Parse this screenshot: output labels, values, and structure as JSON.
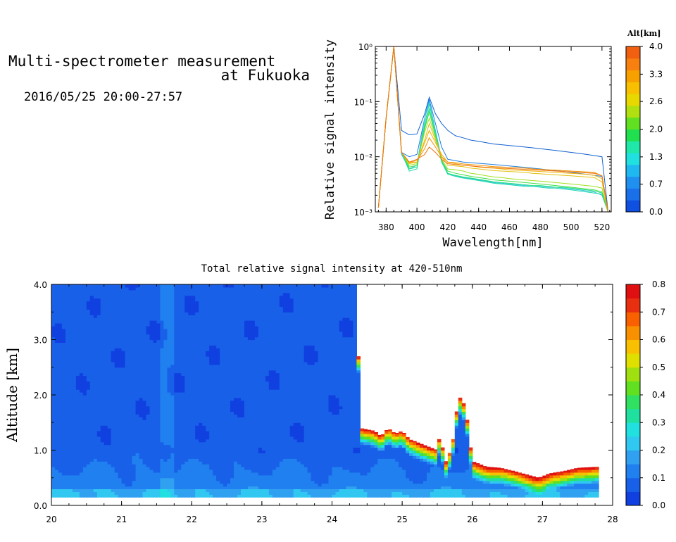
{
  "header": {
    "title_line1": "Multi-spectrometer measurement",
    "title_line2": "at Fukuoka",
    "date_range": "2016/05/25 20:00-27:57"
  },
  "chart_data": [
    {
      "type": "line",
      "xlabel": "Wavelength[nm]",
      "ylabel": "Relative signal intensity",
      "xlim": [
        373,
        526
      ],
      "ylim": [
        0.001,
        1
      ],
      "yscale": "log",
      "x_ticks": [
        "380",
        "400",
        "420",
        "440",
        "460",
        "480",
        "500",
        "520"
      ],
      "x_tick_values": [
        380,
        400,
        420,
        440,
        460,
        480,
        500,
        520
      ],
      "y_ticks": [
        "10⁻³",
        "10⁻²",
        "10⁻¹",
        "10⁰"
      ],
      "y_tick_values": [
        0.001,
        0.01,
        0.1,
        1
      ],
      "x": [
        375,
        380,
        385,
        390,
        395,
        400,
        405,
        408,
        412,
        416,
        420,
        425,
        430,
        435,
        440,
        445,
        450,
        455,
        460,
        465,
        470,
        475,
        480,
        485,
        490,
        495,
        500,
        505,
        510,
        515,
        520,
        524
      ],
      "series": [
        {
          "alt": 0.0,
          "color": "#1060d0",
          "values": [
            0.0012,
            0.05,
            1.0,
            0.03,
            0.025,
            0.026,
            0.06,
            0.12,
            0.06,
            0.04,
            0.03,
            0.024,
            0.022,
            0.02,
            0.019,
            0.018,
            0.017,
            0.0165,
            0.016,
            0.0155,
            0.015,
            0.0145,
            0.014,
            0.0135,
            0.013,
            0.0125,
            0.012,
            0.0115,
            0.011,
            0.0105,
            0.01,
            0.001
          ]
        },
        {
          "alt": 0.3,
          "color": "#2080e0",
          "values": [
            0.0012,
            0.05,
            1.0,
            0.012,
            0.01,
            0.011,
            0.05,
            0.11,
            0.04,
            0.015,
            0.009,
            0.0085,
            0.008,
            0.0078,
            0.0076,
            0.0074,
            0.0072,
            0.007,
            0.0068,
            0.0066,
            0.0064,
            0.0062,
            0.006,
            0.0058,
            0.0056,
            0.0054,
            0.0052,
            0.005,
            0.0048,
            0.0046,
            0.0044,
            0.001
          ]
        },
        {
          "alt": 1.0,
          "color": "#30c0e0",
          "values": [
            0.0012,
            0.05,
            1.0,
            0.011,
            0.006,
            0.007,
            0.05,
            0.1,
            0.03,
            0.009,
            0.005,
            0.0045,
            0.0042,
            0.004,
            0.0038,
            0.0036,
            0.0034,
            0.0033,
            0.0032,
            0.0031,
            0.003,
            0.0029,
            0.0029,
            0.0028,
            0.0028,
            0.0027,
            0.0026,
            0.0025,
            0.0024,
            0.0023,
            0.002,
            0.001
          ]
        },
        {
          "alt": 1.3,
          "color": "#20d8b0",
          "values": [
            0.0012,
            0.05,
            1.0,
            0.012,
            0.0055,
            0.006,
            0.04,
            0.09,
            0.028,
            0.008,
            0.0048,
            0.0044,
            0.0041,
            0.0039,
            0.0037,
            0.0035,
            0.0033,
            0.0032,
            0.0031,
            0.003,
            0.0029,
            0.0029,
            0.0028,
            0.0027,
            0.0027,
            0.0026,
            0.0025,
            0.0024,
            0.0023,
            0.0022,
            0.0021,
            0.001
          ]
        },
        {
          "alt": 1.7,
          "color": "#20e080",
          "values": [
            0.0012,
            0.05,
            1.0,
            0.012,
            0.006,
            0.0065,
            0.035,
            0.075,
            0.025,
            0.008,
            0.005,
            0.0046,
            0.0043,
            0.0041,
            0.0039,
            0.0037,
            0.0035,
            0.0034,
            0.0033,
            0.0032,
            0.0031,
            0.003,
            0.003,
            0.0029,
            0.0028,
            0.0028,
            0.0027,
            0.0026,
            0.0025,
            0.0024,
            0.0022,
            0.001
          ]
        },
        {
          "alt": 2.0,
          "color": "#40e040",
          "values": [
            0.0012,
            0.05,
            1.0,
            0.012,
            0.0065,
            0.007,
            0.032,
            0.065,
            0.024,
            0.0085,
            0.0055,
            0.005,
            0.0047,
            0.0044,
            0.0042,
            0.004,
            0.0038,
            0.0037,
            0.0036,
            0.0035,
            0.0034,
            0.0033,
            0.0032,
            0.0031,
            0.003,
            0.0029,
            0.0028,
            0.0027,
            0.0026,
            0.0025,
            0.0023,
            0.001
          ]
        },
        {
          "alt": 2.6,
          "color": "#a0e020",
          "values": [
            0.0012,
            0.05,
            1.0,
            0.012,
            0.007,
            0.0075,
            0.028,
            0.05,
            0.022,
            0.009,
            0.006,
            0.0058,
            0.0055,
            0.005,
            0.0048,
            0.0045,
            0.0043,
            0.0042,
            0.004,
            0.0039,
            0.0038,
            0.0037,
            0.0036,
            0.0035,
            0.0034,
            0.0033,
            0.0032,
            0.0031,
            0.003,
            0.0029,
            0.0027,
            0.001
          ]
        },
        {
          "alt": 3.0,
          "color": "#e0c010",
          "values": [
            0.0012,
            0.05,
            1.0,
            0.012,
            0.0075,
            0.008,
            0.02,
            0.04,
            0.02,
            0.01,
            0.007,
            0.0068,
            0.0066,
            0.0062,
            0.006,
            0.0058,
            0.0056,
            0.0055,
            0.0054,
            0.0053,
            0.0052,
            0.005,
            0.0049,
            0.0048,
            0.0047,
            0.0046,
            0.0045,
            0.0044,
            0.0043,
            0.0042,
            0.0035,
            0.001
          ]
        },
        {
          "alt": 3.3,
          "color": "#f0b000",
          "values": [
            0.0012,
            0.05,
            1.0,
            0.012,
            0.0078,
            0.008,
            0.018,
            0.03,
            0.018,
            0.011,
            0.008,
            0.0075,
            0.007,
            0.0068,
            0.0065,
            0.0063,
            0.0062,
            0.006,
            0.0058,
            0.0057,
            0.0056,
            0.0055,
            0.0054,
            0.0053,
            0.0052,
            0.0051,
            0.005,
            0.0049,
            0.0048,
            0.0046,
            0.004,
            0.001
          ]
        },
        {
          "alt": 3.7,
          "color": "#f09000",
          "values": [
            0.0012,
            0.05,
            1.0,
            0.012,
            0.008,
            0.0085,
            0.014,
            0.022,
            0.015,
            0.01,
            0.008,
            0.0078,
            0.0074,
            0.0072,
            0.007,
            0.0068,
            0.0066,
            0.0065,
            0.0064,
            0.0063,
            0.0062,
            0.006,
            0.0059,
            0.0058,
            0.0057,
            0.0056,
            0.0055,
            0.0054,
            0.0053,
            0.0052,
            0.0045,
            0.001
          ]
        },
        {
          "alt": 4.0,
          "color": "#f07010",
          "values": [
            0.0012,
            0.05,
            1.0,
            0.012,
            0.008,
            0.009,
            0.011,
            0.015,
            0.012,
            0.009,
            0.0075,
            0.0072,
            0.007,
            0.0068,
            0.0066,
            0.0064,
            0.0063,
            0.0062,
            0.0061,
            0.006,
            0.0059,
            0.0058,
            0.0057,
            0.0056,
            0.0055,
            0.0054,
            0.0053,
            0.0052,
            0.0051,
            0.005,
            0.0045,
            0.001
          ]
        }
      ],
      "colorbar": {
        "label": "Alt[km]",
        "ticks": [
          "0.0",
          "0.7",
          "1.3",
          "2.0",
          "2.6",
          "3.3",
          "4.0"
        ],
        "tick_values": [
          0.0,
          0.67,
          1.33,
          2.0,
          2.67,
          3.33,
          4.0
        ],
        "colors": [
          "#1050e0",
          "#1a70e8",
          "#2090f0",
          "#20b8f0",
          "#20e0e0",
          "#20e8a8",
          "#20e050",
          "#60e020",
          "#b0e010",
          "#e8d800",
          "#f8c000",
          "#f8a000",
          "#f88010",
          "#f06010"
        ]
      }
    },
    {
      "type": "heatmap",
      "title": "Total relative signal intensity at 420-510nm",
      "ylabel": "Altitude [km]",
      "xlim": [
        20,
        28
      ],
      "ylim": [
        0,
        4
      ],
      "x_ticks": [
        "20",
        "21",
        "22",
        "23",
        "24",
        "25",
        "26",
        "27",
        "28"
      ],
      "x_tick_values": [
        20,
        21,
        22,
        23,
        24,
        25,
        26,
        27,
        28
      ],
      "y_ticks": [
        "0.0",
        "1.0",
        "2.0",
        "3.0",
        "4.0"
      ],
      "y_tick_values": [
        0,
        1,
        2,
        3,
        4
      ],
      "data_x_range": [
        20,
        27.8
      ],
      "data_bottom": 0.15,
      "cloud_base_profile": {
        "x": [
          24.35,
          24.4,
          24.6,
          24.7,
          24.8,
          24.9,
          25.0,
          25.1,
          25.4,
          25.5,
          25.55,
          25.6,
          25.65,
          25.7,
          25.75,
          25.8,
          25.9,
          26.0,
          26.1,
          26.2,
          26.4,
          26.6,
          26.8,
          26.95,
          27.1,
          27.3,
          27.5,
          27.8
        ],
        "y": [
          4.0,
          1.4,
          1.35,
          1.25,
          1.4,
          1.3,
          1.35,
          1.2,
          1.05,
          1.0,
          1.4,
          0.7,
          0.9,
          1.0,
          1.4,
          2.0,
          1.8,
          0.8,
          0.75,
          0.7,
          0.68,
          0.62,
          0.55,
          0.5,
          0.58,
          0.62,
          0.68,
          0.7
        ]
      },
      "colorbar": {
        "ticks": [
          "0.0",
          "0.1",
          "0.2",
          "0.3",
          "0.4",
          "0.5",
          "0.6",
          "0.7",
          "0.8"
        ],
        "tick_values": [
          0,
          0.1,
          0.2,
          0.3,
          0.4,
          0.5,
          0.6,
          0.7,
          0.8
        ],
        "colors": [
          "#1040e0",
          "#1860e8",
          "#2080f0",
          "#30a0f0",
          "#30c8f0",
          "#20e0e0",
          "#20e0a0",
          "#30e060",
          "#60e020",
          "#a0e010",
          "#e0e000",
          "#f8c000",
          "#f89000",
          "#f86000",
          "#e83010",
          "#e01010"
        ]
      }
    }
  ]
}
